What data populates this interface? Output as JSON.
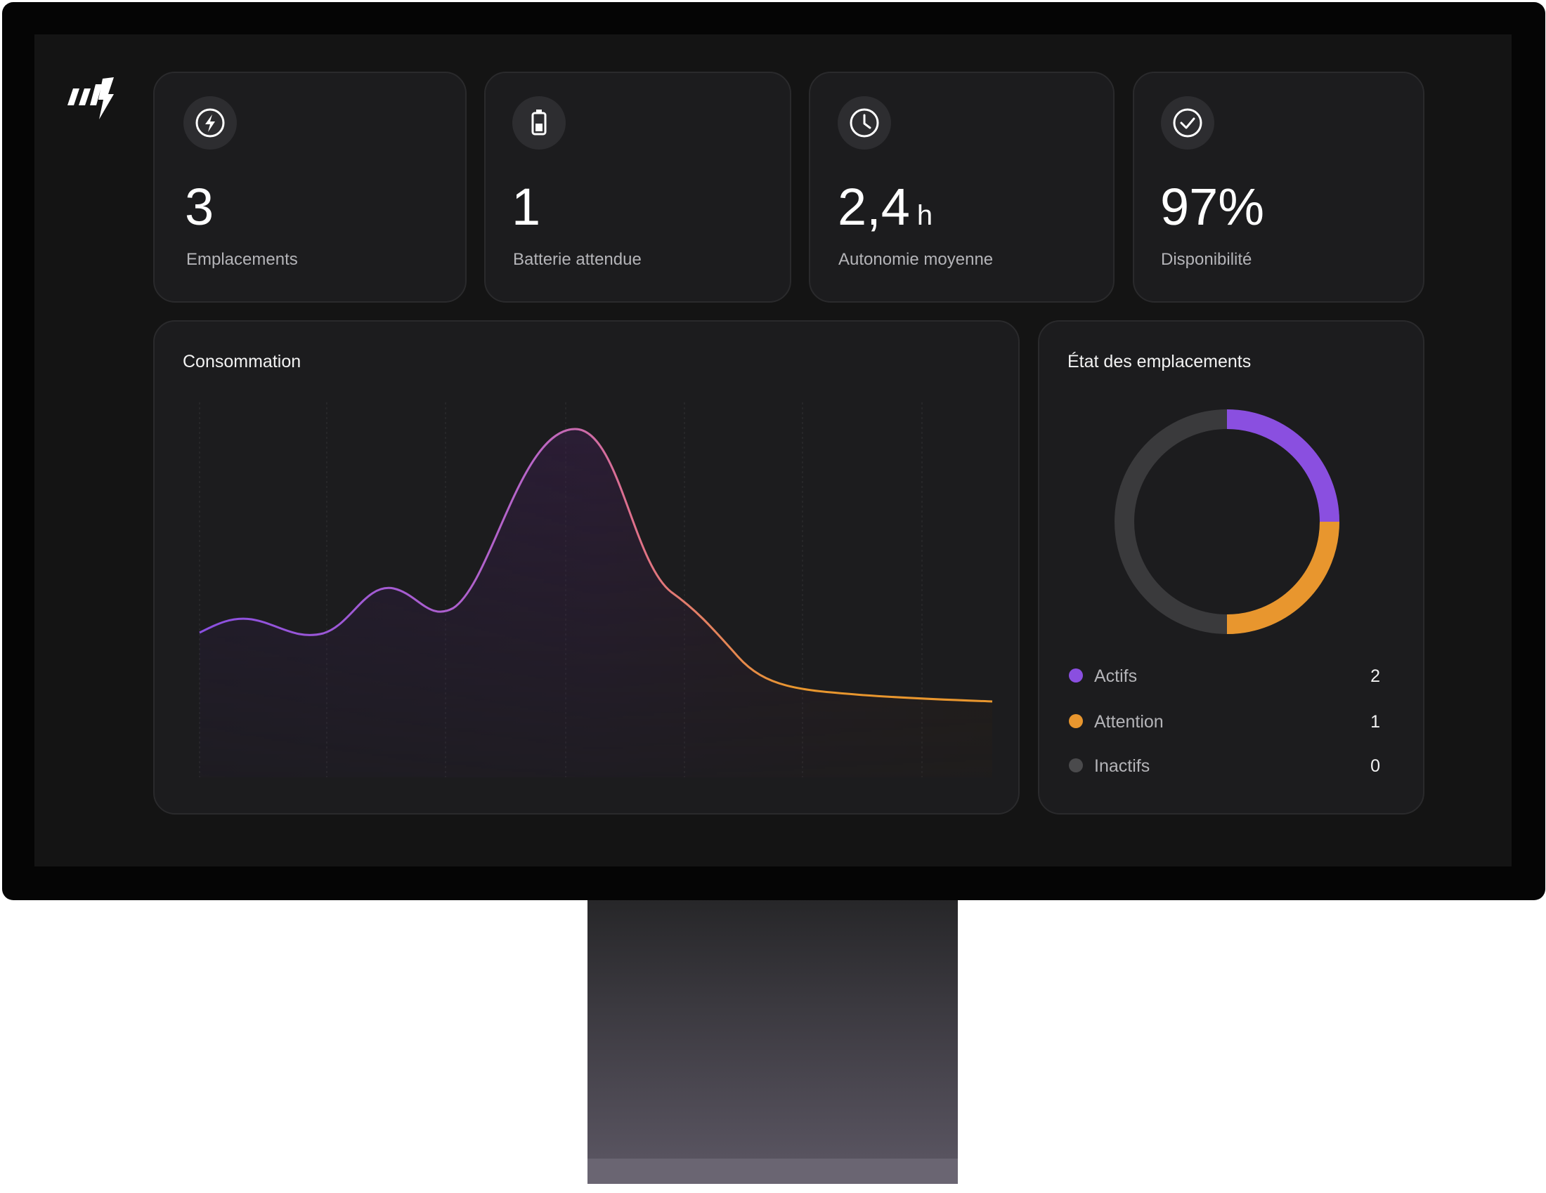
{
  "stats": [
    {
      "value": "3",
      "label": "Emplacements"
    },
    {
      "value": "1",
      "label": "Batterie attendue"
    },
    {
      "value": "2,4",
      "unit": "h",
      "label": "Autonomie moyenne"
    },
    {
      "value": "97%",
      "label": "Disponibilité"
    }
  ],
  "consumption": {
    "title": "Consommation"
  },
  "status": {
    "title": "État des emplacements",
    "items": [
      {
        "label": "Actifs",
        "count": 2
      },
      {
        "label": "Attention",
        "count": 1
      },
      {
        "label": "Inactifs",
        "count": 0
      }
    ]
  }
}
